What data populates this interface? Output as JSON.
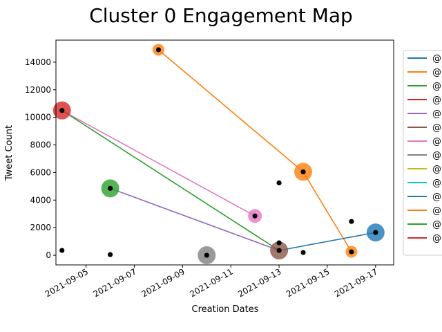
{
  "chart_data": {
    "type": "scatter",
    "title": "Cluster 0 Engagement Map",
    "xlabel": "Creation Dates",
    "ylabel": "Tweet Count",
    "xlim": [
      "2021-09-03 18:00",
      "2021-09-17 18:00"
    ],
    "ylim": [
      -700,
      15600
    ],
    "x_ticks": [
      "2021-09-05",
      "2021-09-07",
      "2021-09-09",
      "2021-09-11",
      "2021-09-13",
      "2021-09-15",
      "2021-09-17"
    ],
    "y_ticks": [
      0,
      2000,
      4000,
      6000,
      8000,
      10000,
      12000,
      14000
    ],
    "grid": false,
    "legend_position": "right",
    "legend_entries": [
      {
        "label": "@",
        "color": "#1f77b4"
      },
      {
        "label": "@",
        "color": "#ff7f0e"
      },
      {
        "label": "@",
        "color": "#2ca02c"
      },
      {
        "label": "@",
        "color": "#d62728"
      },
      {
        "label": "@",
        "color": "#9467bd"
      },
      {
        "label": "@",
        "color": "#8c564b"
      },
      {
        "label": "@",
        "color": "#e377c2"
      },
      {
        "label": "@",
        "color": "#7f7f7f"
      },
      {
        "label": "@",
        "color": "#bcbd22"
      },
      {
        "label": "@",
        "color": "#17becf"
      },
      {
        "label": "@",
        "color": "#1f77b4"
      },
      {
        "label": "@",
        "color": "#ff7f0e"
      },
      {
        "label": "@",
        "color": "#2ca02c"
      },
      {
        "label": "@",
        "color": "#d62728"
      }
    ],
    "lines": [
      {
        "color": "#ff7f0e",
        "points": [
          [
            "2021-09-08",
            14900
          ],
          [
            "2021-09-14",
            6050
          ],
          [
            "2021-09-16",
            250
          ]
        ]
      },
      {
        "color": "#2ca02c",
        "points": [
          [
            "2021-09-04",
            10500
          ],
          [
            "2021-09-13",
            350
          ]
        ]
      },
      {
        "color": "#e377c2",
        "points": [
          [
            "2021-09-04",
            10500
          ],
          [
            "2021-09-12",
            2850
          ]
        ]
      },
      {
        "color": "#9467bd",
        "points": [
          [
            "2021-09-06",
            4850
          ],
          [
            "2021-09-13",
            350
          ]
        ]
      },
      {
        "color": "#1f77b4",
        "points": [
          [
            "2021-09-13",
            350
          ],
          [
            "2021-09-17",
            1650
          ]
        ]
      }
    ],
    "bubbles": [
      {
        "x": "2021-09-08",
        "y": 14900,
        "color": "#ff7f0e",
        "size": "small"
      },
      {
        "x": "2021-09-04",
        "y": 10500,
        "color": "#d62728",
        "size": "large"
      },
      {
        "x": "2021-09-14",
        "y": 6050,
        "color": "#ff7f0e",
        "size": "large"
      },
      {
        "x": "2021-09-06",
        "y": 4850,
        "color": "#2ca02c",
        "size": "large"
      },
      {
        "x": "2021-09-12",
        "y": 2850,
        "color": "#e377c2",
        "size": "medium"
      },
      {
        "x": "2021-09-13",
        "y": 350,
        "color": "#8c564b",
        "size": "large"
      },
      {
        "x": "2021-09-10",
        "y": 0,
        "color": "#7f7f7f",
        "size": "large"
      },
      {
        "x": "2021-09-17",
        "y": 1650,
        "color": "#1f77b4",
        "size": "large"
      },
      {
        "x": "2021-09-16",
        "y": 250,
        "color": "#ff7f0e",
        "size": "small"
      }
    ],
    "points": [
      {
        "x": "2021-09-04",
        "y": 350
      },
      {
        "x": "2021-09-06",
        "y": 50
      },
      {
        "x": "2021-09-13",
        "y": 5250
      },
      {
        "x": "2021-09-13",
        "y": 900
      },
      {
        "x": "2021-09-14",
        "y": 200
      },
      {
        "x": "2021-09-16",
        "y": 2450
      },
      {
        "x": "2021-09-08",
        "y": 14900
      },
      {
        "x": "2021-09-04",
        "y": 10500
      },
      {
        "x": "2021-09-14",
        "y": 6050
      },
      {
        "x": "2021-09-06",
        "y": 4850
      },
      {
        "x": "2021-09-12",
        "y": 2850
      },
      {
        "x": "2021-09-13",
        "y": 350
      },
      {
        "x": "2021-09-10",
        "y": 0
      },
      {
        "x": "2021-09-17",
        "y": 1650
      },
      {
        "x": "2021-09-16",
        "y": 250
      }
    ]
  }
}
